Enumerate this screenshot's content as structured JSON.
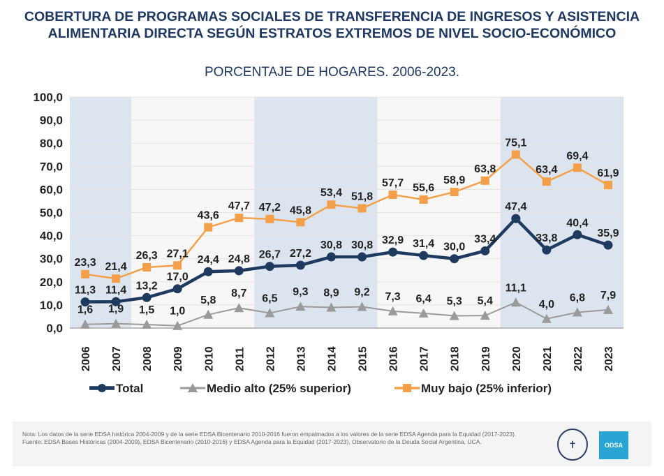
{
  "title": "COBERTURA DE PROGRAMAS SOCIALES DE TRANSFERENCIA DE INGRESOS Y ASISTENCIA ALIMENTARIA DIRECTA SEGÚN ESTRATOS EXTREMOS DE NIVEL SOCIO-ECONÓMICO",
  "subtitle": "PORCENTAJE DE HOGARES. 2006-2023.",
  "chart_data": {
    "type": "line",
    "categories": [
      "2006",
      "2007",
      "2008",
      "2009",
      "2010",
      "2011",
      "2012",
      "2013",
      "2014",
      "2015",
      "2016",
      "2017",
      "2018",
      "2019",
      "2020",
      "2021",
      "2022",
      "2023"
    ],
    "ylim": [
      0,
      100
    ],
    "yticks": [
      "0,0",
      "10,0",
      "20,0",
      "30,0",
      "40,0",
      "50,0",
      "60,0",
      "70,0",
      "80,0",
      "90,0",
      "100,0"
    ],
    "grid": true,
    "legend": "bottom",
    "series": [
      {
        "name": "Total",
        "color": "#1f3a5f",
        "marker": "circle",
        "values": [
          11.3,
          11.4,
          13.2,
          17.0,
          24.4,
          24.8,
          26.7,
          27.2,
          30.8,
          30.8,
          32.9,
          31.4,
          30.0,
          33.4,
          47.4,
          33.8,
          40.4,
          35.9
        ]
      },
      {
        "name": "Medio alto (25% superior)",
        "color": "#9a9a9a",
        "marker": "triangle",
        "values": [
          1.6,
          1.9,
          1.5,
          1.0,
          5.8,
          8.7,
          6.5,
          9.3,
          8.9,
          9.2,
          7.3,
          6.4,
          5.3,
          5.4,
          11.1,
          4.0,
          6.8,
          7.9
        ]
      },
      {
        "name": "Muy bajo (25% inferior)",
        "color": "#f4a04a",
        "marker": "square",
        "values": [
          23.3,
          21.4,
          26.3,
          27.1,
          43.6,
          47.7,
          47.2,
          45.8,
          53.4,
          51.8,
          57.7,
          55.6,
          58.9,
          63.8,
          75.1,
          63.4,
          69.4,
          61.9
        ]
      }
    ],
    "shaded_periods": [
      [
        "2006",
        "2007"
      ],
      [
        "2012",
        "2015"
      ],
      [
        "2020",
        "2023"
      ]
    ]
  },
  "footer": {
    "note": "Nota: Los datos de la serie EDSA histórica 2004-2009 y de la serie EDSA Bicentenario 2010-2016 fueron empalmados a los valores de la serie EDSA Agenda para la Equidad (2017-2023).",
    "source": "Fuente: EDSA Bases Históricas (2004-2009), EDSA Bicentenario (2010-2016) y EDSA Agenda para la Equidad (2017-2023), Observatorio de la Deuda Social Argentina, UCA.",
    "logo": "ODSA"
  }
}
